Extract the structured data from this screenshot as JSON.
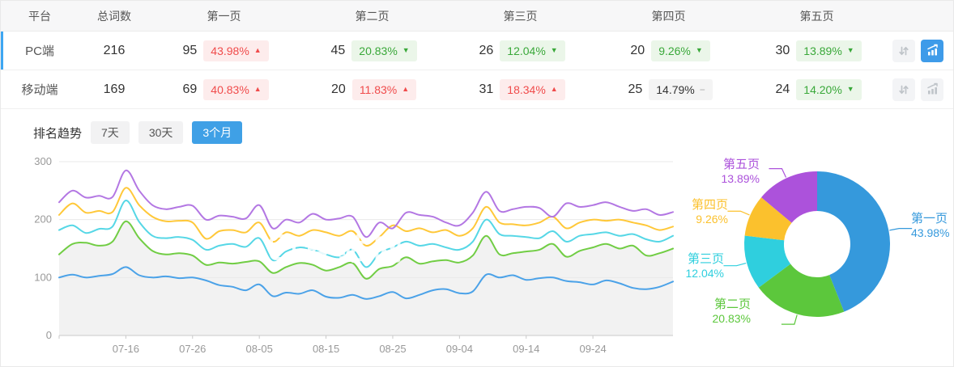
{
  "table": {
    "headers": [
      "平台",
      "总词数",
      "第一页",
      "第二页",
      "第三页",
      "第四页",
      "第五页"
    ],
    "rows": [
      {
        "platform": "PC端",
        "total": "216",
        "chart_active": true,
        "pages": [
          {
            "count": "95",
            "pct": "43.98%",
            "dir": "up",
            "tone": "red"
          },
          {
            "count": "45",
            "pct": "20.83%",
            "dir": "down",
            "tone": "green"
          },
          {
            "count": "26",
            "pct": "12.04%",
            "dir": "down",
            "tone": "green"
          },
          {
            "count": "20",
            "pct": "9.26%",
            "dir": "down",
            "tone": "green"
          },
          {
            "count": "30",
            "pct": "13.89%",
            "dir": "down",
            "tone": "green"
          }
        ]
      },
      {
        "platform": "移动端",
        "total": "169",
        "chart_active": false,
        "pages": [
          {
            "count": "69",
            "pct": "40.83%",
            "dir": "up",
            "tone": "red"
          },
          {
            "count": "20",
            "pct": "11.83%",
            "dir": "up",
            "tone": "red"
          },
          {
            "count": "31",
            "pct": "18.34%",
            "dir": "up",
            "tone": "red"
          },
          {
            "count": "25",
            "pct": "14.79%",
            "dir": "flat",
            "tone": "gray"
          },
          {
            "count": "24",
            "pct": "14.20%",
            "dir": "down",
            "tone": "green"
          }
        ]
      }
    ]
  },
  "trend": {
    "title": "排名趋势",
    "tabs": [
      {
        "label": "7天",
        "active": false
      },
      {
        "label": "30天",
        "active": false
      },
      {
        "label": "3个月",
        "active": true
      }
    ]
  },
  "watermark": "爱站网",
  "colors": {
    "accent_blue": "#3DA6F2",
    "active_tab": "#3FA0E6",
    "icon_active": "#3E9BE9",
    "badge_red": "#F04B4B",
    "badge_green": "#39A839"
  },
  "chart_data": [
    {
      "type": "line",
      "title": "排名趋势 3个月",
      "x_tick_labels": [
        "07-16",
        "07-26",
        "08-05",
        "08-15",
        "08-25",
        "09-04",
        "09-14",
        "09-24"
      ],
      "x_tick_indices": [
        5,
        10,
        15,
        20,
        25,
        30,
        35,
        40
      ],
      "ylim": [
        0,
        300
      ],
      "y_ticks": [
        0,
        100,
        200,
        300
      ],
      "grid": true,
      "legend": "none",
      "series": [
        {
          "name": "line-1-blue",
          "color": "#4BA2E8",
          "area": false,
          "values": [
            100,
            105,
            100,
            103,
            106,
            118,
            104,
            100,
            102,
            99,
            100,
            95,
            87,
            84,
            78,
            88,
            68,
            74,
            72,
            78,
            67,
            65,
            70,
            63,
            68,
            75,
            64,
            70,
            78,
            80,
            73,
            76,
            105,
            100,
            104,
            96,
            99,
            100,
            94,
            92,
            88,
            95,
            90,
            82,
            80,
            84,
            93
          ]
        },
        {
          "name": "line-2-green",
          "color": "#71CD44",
          "area": true,
          "area_color": "#f2f2f2",
          "values": [
            140,
            158,
            160,
            155,
            162,
            197,
            168,
            146,
            140,
            142,
            138,
            122,
            126,
            124,
            127,
            128,
            108,
            118,
            125,
            122,
            112,
            118,
            125,
            98,
            115,
            120,
            135,
            124,
            128,
            130,
            126,
            138,
            172,
            140,
            142,
            145,
            148,
            158,
            136,
            146,
            152,
            158,
            150,
            155,
            138,
            142,
            150
          ]
        },
        {
          "name": "line-3-cyan",
          "color": "#56D7E6",
          "area": false,
          "values": [
            182,
            190,
            177,
            184,
            188,
            233,
            196,
            172,
            168,
            170,
            165,
            148,
            155,
            158,
            153,
            168,
            130,
            145,
            152,
            148,
            140,
            135,
            148,
            118,
            142,
            152,
            162,
            155,
            158,
            152,
            148,
            162,
            200,
            175,
            172,
            170,
            168,
            180,
            162,
            172,
            175,
            178,
            172,
            175,
            166,
            162,
            172
          ]
        },
        {
          "name": "line-4-yellow",
          "color": "#FFC839",
          "area": false,
          "values": [
            208,
            228,
            212,
            215,
            213,
            255,
            225,
            205,
            197,
            198,
            195,
            167,
            180,
            182,
            178,
            195,
            162,
            178,
            172,
            182,
            178,
            172,
            180,
            155,
            170,
            190,
            180,
            185,
            178,
            182,
            172,
            185,
            222,
            195,
            192,
            190,
            195,
            205,
            185,
            195,
            200,
            198,
            200,
            195,
            190,
            182,
            188
          ]
        },
        {
          "name": "line-5-purple",
          "color": "#B377E3",
          "area": false,
          "values": [
            230,
            250,
            238,
            241,
            239,
            285,
            250,
            225,
            218,
            222,
            224,
            200,
            207,
            205,
            202,
            225,
            185,
            200,
            195,
            210,
            200,
            202,
            205,
            170,
            195,
            185,
            212,
            208,
            205,
            195,
            190,
            212,
            248,
            215,
            218,
            222,
            220,
            205,
            228,
            222,
            225,
            230,
            222,
            215,
            218,
            208,
            213
          ]
        }
      ]
    },
    {
      "type": "pie",
      "donut": true,
      "slices": [
        {
          "label": "第一页",
          "value": 43.98,
          "display": "43.98%",
          "color": "#3599DC"
        },
        {
          "label": "第二页",
          "value": 20.83,
          "display": "20.83%",
          "color": "#5CC73C"
        },
        {
          "label": "第三页",
          "value": 12.04,
          "display": "12.04%",
          "color": "#2FCFDE"
        },
        {
          "label": "第四页",
          "value": 9.26,
          "display": "9.26%",
          "color": "#FBC12D"
        },
        {
          "label": "第五页",
          "value": 13.89,
          "display": "13.89%",
          "color": "#AC52DB"
        }
      ]
    }
  ]
}
